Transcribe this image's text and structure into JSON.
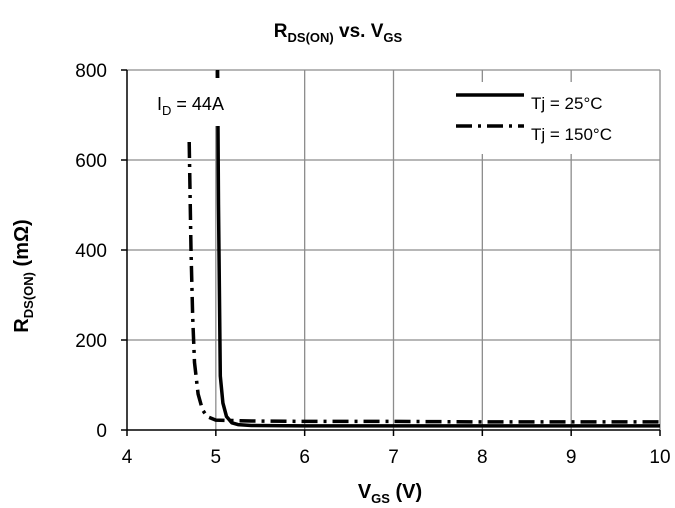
{
  "chart_data": {
    "type": "line",
    "title": {
      "main": "R",
      "sub": "DS(ON)",
      "mid": " vs. V",
      "sub2": "GS"
    },
    "xlabel": {
      "main": "V",
      "sub": "GS",
      "unit": " (V)"
    },
    "ylabel": {
      "main": "R",
      "sub": "DS(ON)",
      "unit": " (mΩ)"
    },
    "xlim": [
      4,
      10
    ],
    "ylim": [
      0,
      800
    ],
    "x_ticks": [
      4,
      5,
      6,
      7,
      8,
      9,
      10
    ],
    "y_ticks": [
      0,
      200,
      400,
      600,
      800
    ],
    "grid": true,
    "legend_position": "top-right",
    "annotation": {
      "main": "I",
      "sub": "D",
      "rest": " = 44A"
    },
    "series": [
      {
        "name": "Tj = 25°C",
        "style": "solid",
        "color": "#000000",
        "x": [
          5.02,
          5.03,
          5.05,
          5.08,
          5.12,
          5.18,
          5.25,
          5.4,
          6,
          7,
          8,
          9,
          10
        ],
        "y": [
          800,
          500,
          120,
          60,
          30,
          16,
          12,
          10,
          9,
          9,
          9,
          9,
          9
        ]
      },
      {
        "name": "Tj = 150°C",
        "style": "dashdot",
        "color": "#000000",
        "x": [
          4.7,
          4.72,
          4.74,
          4.76,
          4.8,
          4.85,
          4.9,
          5.0,
          5.4,
          6,
          7,
          8,
          9,
          10
        ],
        "y": [
          640,
          400,
          250,
          150,
          80,
          45,
          30,
          22,
          20,
          19,
          19,
          18,
          18,
          18
        ]
      }
    ]
  }
}
